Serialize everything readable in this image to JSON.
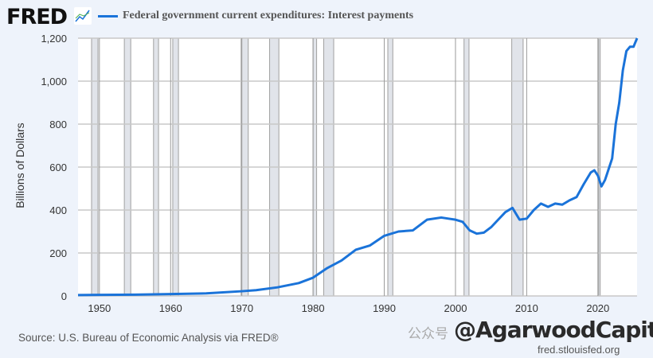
{
  "header": {
    "logo": "FRED",
    "logo_icon": "line-chart-icon"
  },
  "chart_data": {
    "type": "line",
    "title": "",
    "series": [
      {
        "name": "Federal government current expenditures: Interest payments",
        "color": "#1a73d9",
        "x": [
          1947,
          1950,
          1955,
          1960,
          1965,
          1970,
          1972,
          1975,
          1978,
          1980,
          1982,
          1984,
          1986,
          1988,
          1990,
          1992,
          1994,
          1996,
          1998,
          1999,
          2000,
          2001,
          2002,
          2003,
          2004,
          2005,
          2006,
          2007,
          2008,
          2009,
          2010,
          2011,
          2012,
          2013,
          2014,
          2015,
          2016,
          2017,
          2018,
          2019,
          2019.5,
          2020,
          2020.5,
          2021,
          2022,
          2022.5,
          2023,
          2023.5,
          2024,
          2024.5,
          2025,
          2025.5
        ],
        "y": [
          4,
          5,
          6,
          9,
          12,
          22,
          27,
          40,
          60,
          85,
          130,
          165,
          215,
          235,
          280,
          300,
          305,
          355,
          365,
          360,
          355,
          345,
          305,
          290,
          295,
          320,
          355,
          390,
          410,
          355,
          360,
          400,
          430,
          415,
          430,
          425,
          445,
          460,
          520,
          575,
          585,
          560,
          510,
          540,
          640,
          800,
          900,
          1050,
          1140,
          1160,
          1160,
          1200
        ]
      }
    ],
    "xlabel": "",
    "ylabel": "Billions of Dollars",
    "xlim": [
      1947,
      2025.5
    ],
    "ylim": [
      0,
      1200
    ],
    "xticks": [
      1950,
      1960,
      1970,
      1980,
      1990,
      2000,
      2010,
      2020
    ],
    "yticks": [
      0,
      200,
      400,
      600,
      800,
      1000,
      1200
    ],
    "ytick_labels": [
      "0",
      "200",
      "400",
      "600",
      "800",
      "1,000",
      "1,200"
    ],
    "recessions": [
      [
        1948.9,
        1949.8
      ],
      [
        1953.5,
        1954.4
      ],
      [
        1957.6,
        1958.3
      ],
      [
        1960.3,
        1961.1
      ],
      [
        1969.9,
        1970.9
      ],
      [
        1973.9,
        1975.2
      ],
      [
        1980.0,
        1980.5
      ],
      [
        1981.5,
        1982.9
      ],
      [
        1990.5,
        1991.2
      ],
      [
        2001.2,
        2001.9
      ],
      [
        2007.9,
        2009.5
      ],
      [
        2020.1,
        2020.3
      ]
    ],
    "grid": true,
    "legend": "top-left"
  },
  "footer": {
    "source": "Source: U.S. Bureau of Economic Analysis via FRED®",
    "url": "fred.stlouisfed.org"
  },
  "watermark": {
    "text": "@AgarwoodCapital",
    "prefix": "公众号"
  }
}
